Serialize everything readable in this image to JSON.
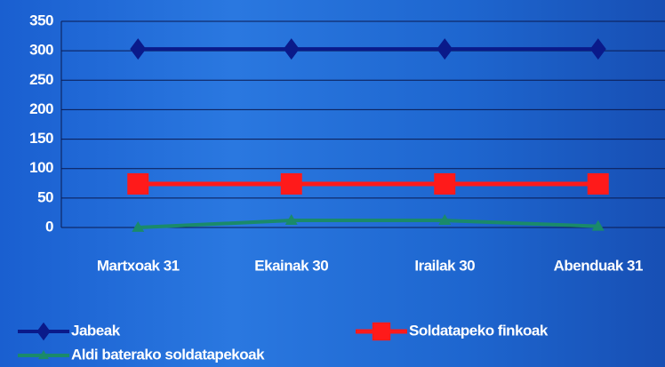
{
  "chart_data": {
    "type": "line",
    "categories": [
      "Martxoak 31",
      "Ekainak 30",
      "Irailak 30",
      "Abenduak 31"
    ],
    "series": [
      {
        "name": "Jabeak",
        "color": "#0a1a8a",
        "marker": "diamond",
        "values": [
          303,
          303,
          303,
          303
        ]
      },
      {
        "name": "Soldatapeko finkoak",
        "color": "#ff1a1a",
        "marker": "square",
        "values": [
          74,
          74,
          74,
          74
        ]
      },
      {
        "name": "Aldi baterako soldatapekoak",
        "color": "#1a8a6a",
        "marker": "triangle",
        "values": [
          0,
          12,
          12,
          2
        ]
      }
    ],
    "ylim": [
      0,
      350
    ],
    "yticks": [
      0,
      50,
      100,
      150,
      200,
      250,
      300,
      350
    ],
    "grid": true,
    "legend": "bottom"
  }
}
